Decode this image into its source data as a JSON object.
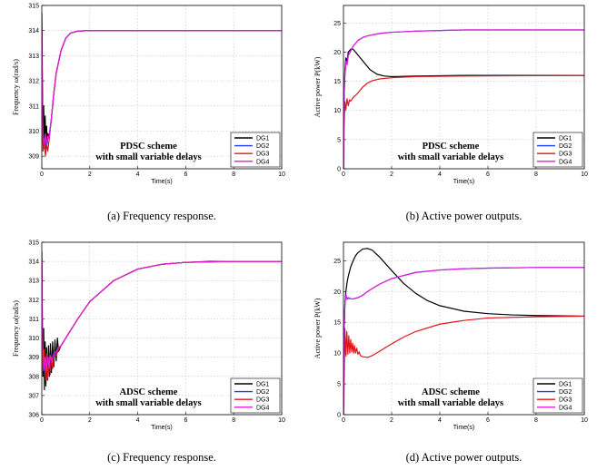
{
  "chart_data": [
    {
      "type": "line",
      "caption": "(a) Frequency response.",
      "xlabel": "Time(s)",
      "ylabel": "Frequency ω(rad/s)",
      "xlim": [
        0,
        10
      ],
      "ylim": [
        308.5,
        315
      ],
      "xticks": [
        0,
        2,
        4,
        6,
        8,
        10
      ],
      "yticks": [
        309,
        310,
        311,
        312,
        313,
        314,
        315
      ],
      "grid": true,
      "legend_position": "bottom-right",
      "annotation": [
        "PDSC scheme",
        "with small variable delays"
      ],
      "series": [
        {
          "name": "DG1",
          "color": "#000000",
          "x": [
            0,
            0.02,
            0.05,
            0.08,
            0.11,
            0.14,
            0.17,
            0.2,
            0.23,
            0.26,
            0.3,
            0.4,
            0.5,
            0.6,
            0.8,
            1.0,
            1.2,
            1.5,
            2.0,
            3.0,
            10
          ],
          "y": [
            314.7,
            312.5,
            309.5,
            311.0,
            309.3,
            310.6,
            309.3,
            310.2,
            309.5,
            309.9,
            309.7,
            310.5,
            311.5,
            312.3,
            313.2,
            313.7,
            313.9,
            313.98,
            314.0,
            314.0,
            314.0
          ]
        },
        {
          "name": "DG2",
          "color": "#1f3fff",
          "x": [
            0,
            0.02,
            0.05,
            0.1,
            0.15,
            0.2,
            0.25,
            0.3,
            0.4,
            0.5,
            0.6,
            0.8,
            1.0,
            1.2,
            1.5,
            2.0,
            3.0,
            10
          ],
          "y": [
            314.0,
            311.0,
            309.6,
            309.4,
            309.8,
            309.3,
            309.8,
            309.7,
            310.5,
            311.5,
            312.3,
            313.2,
            313.7,
            313.9,
            313.98,
            314.0,
            314.0,
            314.0
          ]
        },
        {
          "name": "DG3",
          "color": "#e3141b",
          "x": [
            0,
            0.02,
            0.05,
            0.1,
            0.15,
            0.2,
            0.25,
            0.3,
            0.4,
            0.5,
            0.6,
            0.8,
            1.0,
            1.2,
            1.5,
            2.0,
            3.0,
            10
          ],
          "y": [
            314.0,
            310.8,
            309.2,
            309.6,
            309.0,
            309.5,
            309.2,
            309.6,
            310.5,
            311.5,
            312.3,
            313.2,
            313.7,
            313.9,
            313.98,
            314.0,
            314.0,
            314.0
          ]
        },
        {
          "name": "DG4",
          "color": "#e31bd6",
          "x": [
            0,
            0.02,
            0.05,
            0.1,
            0.15,
            0.2,
            0.25,
            0.3,
            0.4,
            0.5,
            0.6,
            0.8,
            1.0,
            1.2,
            1.5,
            2.0,
            3.0,
            10
          ],
          "y": [
            314.0,
            311.2,
            309.8,
            309.5,
            309.9,
            309.4,
            309.8,
            309.7,
            310.5,
            311.5,
            312.3,
            313.2,
            313.7,
            313.9,
            313.98,
            314.0,
            314.0,
            314.0
          ]
        }
      ]
    },
    {
      "type": "line",
      "caption": "(b) Active power outputs.",
      "xlabel": "Time(s)",
      "ylabel": "Active power P(kW)",
      "xlim": [
        0,
        10
      ],
      "ylim": [
        0,
        28
      ],
      "xticks": [
        0,
        2,
        4,
        6,
        8,
        10
      ],
      "yticks": [
        0,
        5,
        10,
        15,
        20,
        25
      ],
      "grid": true,
      "legend_position": "bottom-right",
      "annotation": [
        "PDSC scheme",
        "with small variable delays"
      ],
      "series": [
        {
          "name": "DG1",
          "color": "#000000",
          "x": [
            0,
            0.03,
            0.06,
            0.1,
            0.15,
            0.2,
            0.3,
            0.4,
            0.5,
            0.7,
            0.9,
            1.1,
            1.4,
            1.7,
            2.0,
            3.0,
            5.0,
            10
          ],
          "y": [
            0,
            14,
            17,
            19,
            18.5,
            20,
            20.5,
            20.5,
            20,
            19,
            18,
            17,
            16.2,
            15.9,
            15.8,
            15.9,
            16.0,
            16.0
          ]
        },
        {
          "name": "DG2",
          "color": "#1f3fff",
          "x": [
            0,
            0.03,
            0.06,
            0.1,
            0.15,
            0.2,
            0.3,
            0.4,
            0.6,
            0.8,
            1.0,
            1.5,
            2.0,
            3.0,
            4.0,
            5.0,
            6.0,
            8.0,
            10
          ],
          "y": [
            0,
            13,
            16,
            18.5,
            18.0,
            19.5,
            20.2,
            21.0,
            22.0,
            22.5,
            22.8,
            23.2,
            23.4,
            23.6,
            23.7,
            23.8,
            23.8,
            23.8,
            23.8
          ]
        },
        {
          "name": "DG3",
          "color": "#e3141b",
          "x": [
            0,
            0.03,
            0.06,
            0.1,
            0.15,
            0.2,
            0.25,
            0.3,
            0.4,
            0.6,
            0.8,
            1.0,
            1.2,
            1.5,
            2.0,
            3.0,
            5.0,
            10
          ],
          "y": [
            0,
            8,
            11.5,
            10.2,
            12.0,
            10.8,
            11.8,
            11.6,
            12.2,
            13.0,
            14.0,
            14.7,
            15.1,
            15.4,
            15.6,
            15.8,
            15.9,
            16.0
          ]
        },
        {
          "name": "DG4",
          "color": "#e31bd6",
          "x": [
            0,
            0.03,
            0.06,
            0.1,
            0.15,
            0.2,
            0.3,
            0.4,
            0.6,
            0.8,
            1.0,
            1.5,
            2.0,
            3.0,
            4.0,
            5.0,
            6.0,
            8.0,
            10
          ],
          "y": [
            0,
            13,
            16,
            18.3,
            17.8,
            19.4,
            20.2,
            21.0,
            22.0,
            22.5,
            22.8,
            23.2,
            23.4,
            23.6,
            23.7,
            23.8,
            23.8,
            23.8,
            23.8
          ]
        }
      ]
    },
    {
      "type": "line",
      "caption": "(c) Frequency response.",
      "xlabel": "Time(s)",
      "ylabel": "Frequency ω(rad/s)",
      "xlim": [
        0,
        10
      ],
      "ylim": [
        306,
        315
      ],
      "xticks": [
        0,
        2,
        4,
        6,
        8,
        10
      ],
      "yticks": [
        306,
        307,
        308,
        309,
        310,
        311,
        312,
        313,
        314,
        315
      ],
      "grid": true,
      "legend_position": "bottom-right",
      "annotation": [
        "ADSC scheme",
        "with small variable delays"
      ],
      "series": [
        {
          "name": "DG1",
          "color": "#000000",
          "x": [
            0,
            0.02,
            0.05,
            0.08,
            0.11,
            0.14,
            0.17,
            0.2,
            0.24,
            0.28,
            0.32,
            0.36,
            0.4,
            0.45,
            0.5,
            0.55,
            0.6,
            0.65,
            0.7,
            0.8,
            0.9,
            1.0,
            1.5,
            2.0,
            3.0,
            4.0,
            5.0,
            6.0,
            7.0,
            8.0,
            10
          ],
          "y": [
            314.5,
            311.0,
            308.0,
            310.5,
            307.3,
            309.8,
            307.5,
            309.5,
            307.8,
            309.6,
            308.0,
            309.7,
            308.2,
            309.8,
            308.5,
            309.9,
            308.8,
            310.0,
            309.3,
            309.6,
            309.8,
            310.0,
            311.0,
            311.9,
            313.0,
            313.6,
            313.85,
            313.95,
            314.0,
            314.0,
            314.0
          ]
        },
        {
          "name": "DG2",
          "color": "#1f3fff",
          "x": [
            0,
            0.02,
            0.05,
            0.1,
            0.15,
            0.2,
            0.25,
            0.3,
            0.35,
            0.4,
            0.5,
            0.6,
            0.7,
            0.8,
            1.0,
            1.5,
            2.0,
            3.0,
            4.0,
            5.0,
            6.0,
            8.0,
            10
          ],
          "y": [
            314.0,
            311.0,
            309.0,
            308.3,
            308.9,
            308.2,
            308.9,
            308.4,
            309.0,
            308.7,
            309.1,
            309.2,
            309.4,
            309.6,
            310.0,
            311.0,
            311.9,
            313.0,
            313.6,
            313.85,
            313.95,
            314.0,
            314.0
          ]
        },
        {
          "name": "DG3",
          "color": "#e3141b",
          "x": [
            0,
            0.02,
            0.05,
            0.1,
            0.15,
            0.2,
            0.25,
            0.3,
            0.35,
            0.4,
            0.45,
            0.5,
            0.6,
            0.7,
            0.8,
            1.0,
            1.5,
            2.0,
            3.0,
            4.0,
            5.0,
            6.0,
            8.0,
            10
          ],
          "y": [
            314.0,
            310.5,
            308.3,
            309.4,
            307.8,
            309.2,
            307.9,
            309.0,
            308.1,
            309.0,
            308.4,
            309.0,
            309.1,
            309.4,
            309.6,
            310.0,
            311.0,
            311.9,
            313.0,
            313.6,
            313.85,
            313.95,
            314.0,
            314.0
          ]
        },
        {
          "name": "DG4",
          "color": "#e31bd6",
          "x": [
            0,
            0.02,
            0.05,
            0.1,
            0.15,
            0.2,
            0.25,
            0.3,
            0.35,
            0.4,
            0.5,
            0.6,
            0.7,
            0.8,
            1.0,
            1.5,
            2.0,
            3.0,
            4.0,
            5.0,
            6.0,
            8.0,
            10
          ],
          "y": [
            314.0,
            311.2,
            309.2,
            308.4,
            309.0,
            308.3,
            309.0,
            308.5,
            309.1,
            308.8,
            309.2,
            309.3,
            309.5,
            309.6,
            310.0,
            311.0,
            311.9,
            313.0,
            313.6,
            313.85,
            313.95,
            314.0,
            314.0
          ]
        }
      ]
    },
    {
      "type": "line",
      "caption": "(d) Active power outputs.",
      "xlabel": "Time(s)",
      "ylabel": "Active power P(kW)",
      "xlim": [
        0,
        10
      ],
      "ylim": [
        0,
        28
      ],
      "xticks": [
        0,
        2,
        4,
        6,
        8,
        10
      ],
      "yticks": [
        0,
        5,
        10,
        15,
        20,
        25
      ],
      "grid": true,
      "legend_position": "bottom-right",
      "annotation": [
        "ADSC scheme",
        "with small variable delays"
      ],
      "series": [
        {
          "name": "DG1",
          "color": "#000000",
          "x": [
            0,
            0.03,
            0.06,
            0.1,
            0.15,
            0.2,
            0.3,
            0.4,
            0.5,
            0.6,
            0.8,
            1.0,
            1.2,
            1.5,
            2.0,
            2.5,
            3.0,
            3.5,
            4.0,
            5.0,
            6.0,
            7.0,
            8.0,
            10
          ],
          "y": [
            0,
            14,
            18,
            20,
            21.5,
            22.5,
            24.0,
            25.0,
            25.8,
            26.3,
            26.9,
            27.0,
            26.7,
            25.6,
            23.4,
            21.3,
            19.7,
            18.5,
            17.7,
            16.8,
            16.4,
            16.2,
            16.1,
            16.0
          ]
        },
        {
          "name": "DG2",
          "color": "#1f3fff",
          "x": [
            0,
            0.03,
            0.06,
            0.1,
            0.15,
            0.2,
            0.3,
            0.4,
            0.5,
            0.6,
            0.8,
            1.0,
            1.5,
            2.0,
            3.0,
            4.0,
            5.0,
            6.0,
            8.0,
            10
          ],
          "y": [
            0,
            14,
            18,
            19.5,
            18.8,
            19.0,
            18.8,
            18.8,
            18.9,
            19.0,
            19.4,
            20.0,
            21.2,
            22.1,
            23.1,
            23.5,
            23.7,
            23.8,
            23.9,
            23.9
          ]
        },
        {
          "name": "DG3",
          "color": "#e3141b",
          "x": [
            0,
            0.03,
            0.06,
            0.1,
            0.14,
            0.18,
            0.22,
            0.26,
            0.3,
            0.34,
            0.38,
            0.42,
            0.46,
            0.5,
            0.55,
            0.6,
            0.65,
            0.7,
            0.8,
            1.0,
            1.2,
            1.5,
            2.0,
            2.5,
            3.0,
            4.0,
            5.0,
            6.0,
            8.0,
            10
          ],
          "y": [
            0,
            6,
            14,
            9.5,
            13.5,
            9.8,
            12.8,
            10.0,
            12.2,
            10.2,
            11.6,
            10.0,
            11.2,
            10.0,
            10.8,
            9.8,
            10.2,
            9.6,
            9.4,
            9.3,
            9.6,
            10.3,
            11.5,
            12.6,
            13.5,
            14.7,
            15.3,
            15.7,
            15.9,
            16.0
          ]
        },
        {
          "name": "DG4",
          "color": "#e31bd6",
          "x": [
            0,
            0.03,
            0.06,
            0.1,
            0.15,
            0.2,
            0.3,
            0.4,
            0.5,
            0.6,
            0.8,
            1.0,
            1.5,
            2.0,
            3.0,
            4.0,
            5.0,
            6.0,
            8.0,
            10
          ],
          "y": [
            0,
            14,
            18,
            19.3,
            18.7,
            18.9,
            18.8,
            18.8,
            18.9,
            19.0,
            19.4,
            20.0,
            21.2,
            22.1,
            23.1,
            23.5,
            23.7,
            23.8,
            23.9,
            23.9
          ]
        }
      ]
    }
  ]
}
